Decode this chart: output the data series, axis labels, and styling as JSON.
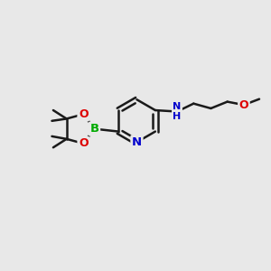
{
  "background_color": "#e8e8e8",
  "bond_color": "#1a1a1a",
  "bond_width": 1.8,
  "atom_colors": {
    "B": "#00aa00",
    "O": "#dd0000",
    "N": "#0000cc",
    "C": "#1a1a1a",
    "H": "#1a1a1a"
  },
  "figsize": [
    3.0,
    3.0
  ],
  "dpi": 100
}
